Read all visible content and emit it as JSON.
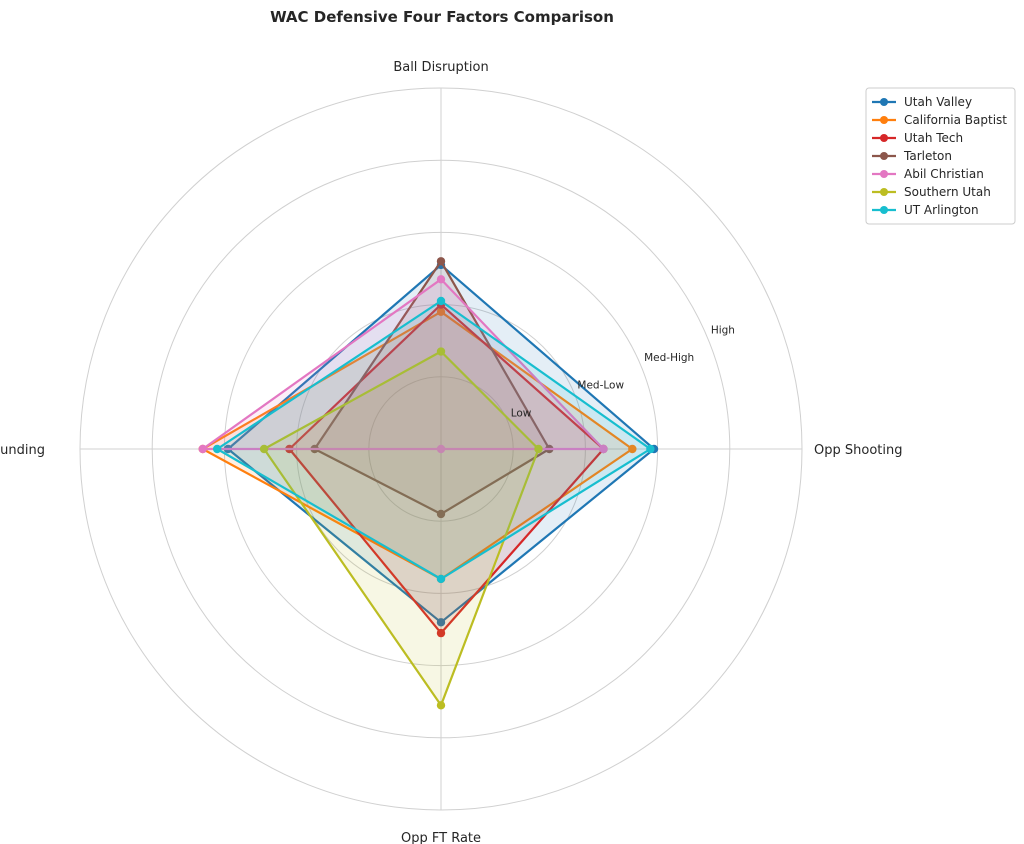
{
  "chart_data": {
    "type": "radar",
    "title": "WAC Defensive Four Factors Comparison",
    "axes": [
      "Ball Disruption",
      "Opp Shooting",
      "Opp FT Rate",
      "Def Rebounding"
    ],
    "rlim": [
      0,
      5
    ],
    "ticks": [
      {
        "value": 1,
        "label": "Low"
      },
      {
        "value": 2,
        "label": "Med-Low"
      },
      {
        "value": 3,
        "label": "Med-High"
      },
      {
        "value": 4,
        "label": "High"
      },
      {
        "value": 5,
        "label": ""
      }
    ],
    "grid": true,
    "legend_position": "top-right",
    "series": [
      {
        "name": "Utah Valley",
        "color": "#1f77b4",
        "values": [
          2.55,
          2.95,
          2.4,
          2.95
        ]
      },
      {
        "name": "California Baptist",
        "color": "#ff7f0e",
        "values": [
          1.9,
          2.65,
          1.8,
          3.3
        ]
      },
      {
        "name": "Utah Tech",
        "color": "#d62728",
        "values": [
          2.0,
          2.25,
          2.55,
          2.1
        ]
      },
      {
        "name": "Tarleton",
        "color": "#8c564b",
        "values": [
          2.6,
          1.5,
          0.9,
          1.75
        ]
      },
      {
        "name": "Abil Christian",
        "color": "#e377c2",
        "values": [
          2.35,
          2.25,
          0.0,
          3.3
        ]
      },
      {
        "name": "Southern Utah",
        "color": "#bcbd22",
        "values": [
          1.35,
          1.35,
          3.55,
          2.45
        ]
      },
      {
        "name": "UT Arlington",
        "color": "#17becf",
        "values": [
          2.05,
          2.9,
          1.8,
          3.1
        ]
      }
    ]
  }
}
